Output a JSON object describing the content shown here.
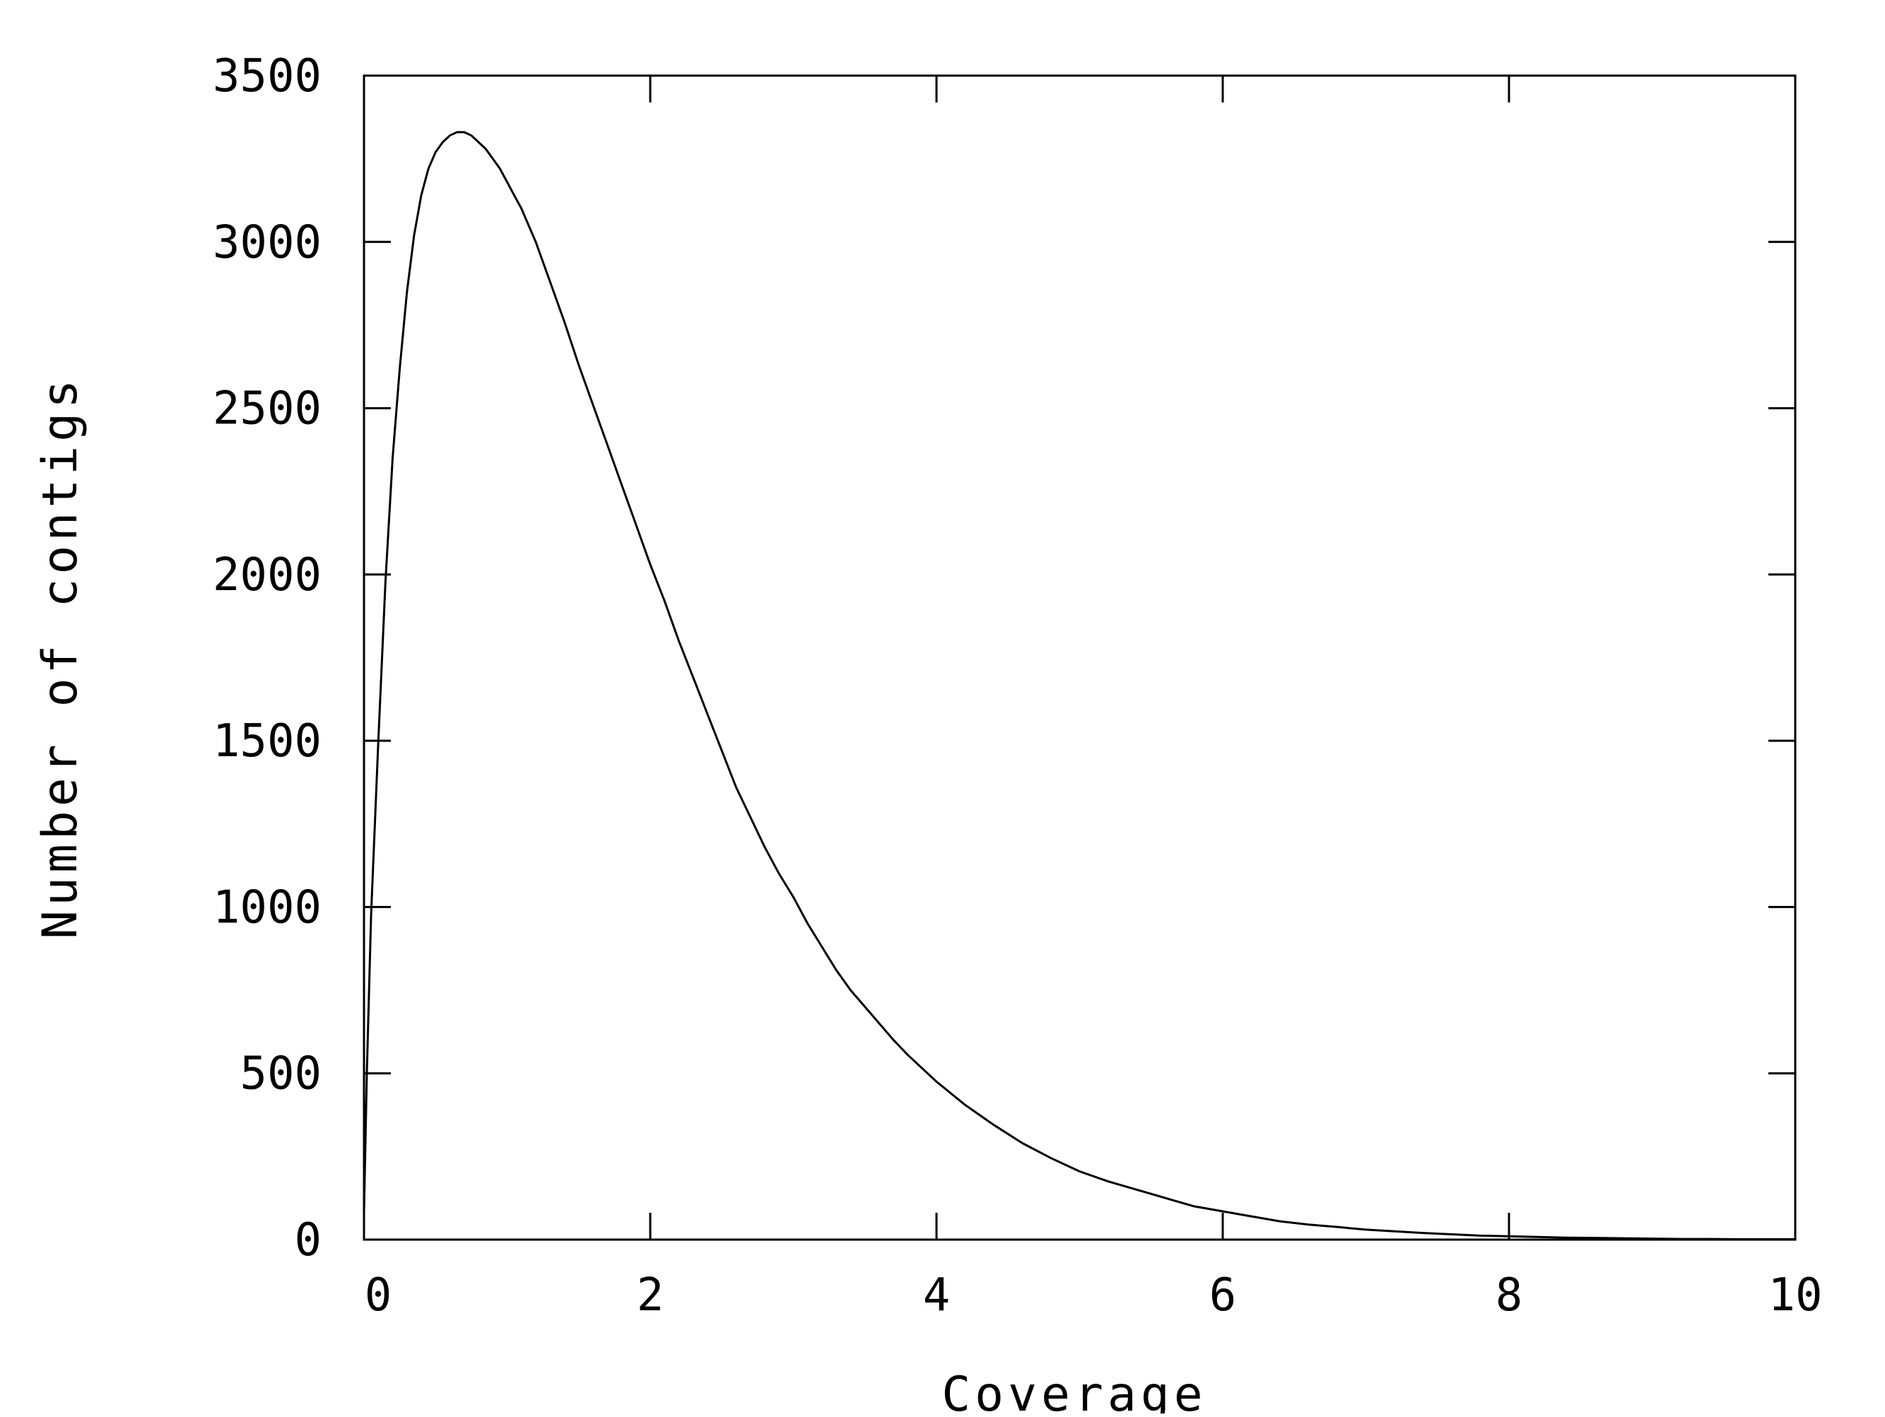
{
  "chart_data": {
    "type": "line",
    "title": "",
    "xlabel": "Coverage",
    "ylabel": "Number of contigs",
    "xlim": [
      0,
      10
    ],
    "ylim": [
      0,
      3500
    ],
    "xticks": [
      0,
      2,
      4,
      6,
      8,
      10
    ],
    "yticks": [
      0,
      500,
      1000,
      1500,
      2000,
      2500,
      3000,
      3500
    ],
    "xtick_labels": [
      "0",
      "2",
      "4",
      "6",
      "8",
      "10"
    ],
    "ytick_labels": [
      "0",
      "500",
      "1000",
      "1500",
      "2000",
      "2500",
      "3000",
      "3500"
    ],
    "grid": false,
    "legend": "none",
    "line_color": "#000000",
    "series": [
      {
        "x": [
          0,
          0.02,
          0.05,
          0.1,
          0.15,
          0.2,
          0.25,
          0.3,
          0.35,
          0.4,
          0.45,
          0.5,
          0.55,
          0.6,
          0.65,
          0.7,
          0.75,
          0.8,
          0.85,
          0.9,
          0.95,
          1.0,
          1.05,
          1.1,
          1.15,
          1.2,
          1.3,
          1.4,
          1.5,
          1.6,
          1.7,
          1.8,
          1.9,
          2.0,
          2.1,
          2.2,
          2.3,
          2.4,
          2.5,
          2.6,
          2.7,
          2.8,
          2.9,
          3.0,
          3.1,
          3.2,
          3.3,
          3.4,
          3.5,
          3.6,
          3.7,
          3.8,
          3.9,
          4.0,
          4.2,
          4.4,
          4.6,
          4.8,
          5.0,
          5.2,
          5.4,
          5.6,
          5.8,
          6.0,
          6.2,
          6.4,
          6.6,
          6.8,
          7.0,
          7.2,
          7.4,
          7.6,
          7.8,
          8.0,
          8.2,
          8.4,
          8.6,
          8.8,
          9.0,
          9.2,
          9.4,
          9.6,
          9.8,
          10.0
        ],
        "y": [
          80,
          500,
          980,
          1500,
          1980,
          2350,
          2620,
          2850,
          3020,
          3140,
          3220,
          3270,
          3300,
          3320,
          3330,
          3330,
          3320,
          3300,
          3280,
          3250,
          3220,
          3180,
          3140,
          3100,
          3050,
          3000,
          2880,
          2760,
          2630,
          2510,
          2390,
          2270,
          2150,
          2030,
          1920,
          1800,
          1690,
          1580,
          1470,
          1360,
          1270,
          1180,
          1100,
          1030,
          950,
          880,
          810,
          750,
          700,
          650,
          600,
          555,
          515,
          475,
          405,
          345,
          290,
          245,
          205,
          175,
          150,
          125,
          100,
          85,
          70,
          55,
          45,
          38,
          30,
          25,
          20,
          16,
          12,
          10,
          8,
          6,
          5,
          4,
          3,
          2,
          2,
          1,
          1,
          1
        ]
      }
    ]
  }
}
